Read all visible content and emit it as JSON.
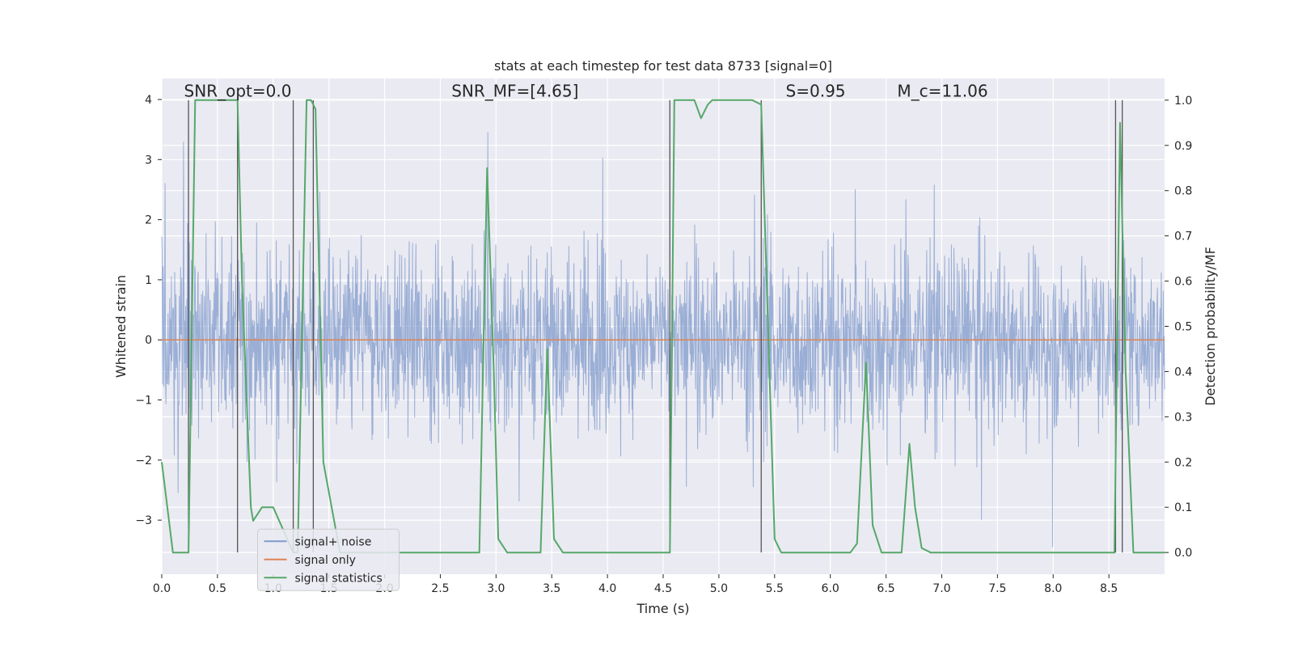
{
  "chart_data": {
    "type": "line",
    "title": "stats at each timestep for test data 8733 [signal=0]",
    "xlabel": "Time (s)",
    "ylabel_left": "Whitened strain",
    "ylabel_right": "Detection probability/MF",
    "xlim": [
      0,
      9.0
    ],
    "ylim_left": [
      -3.9,
      4.35
    ],
    "ylim_right": [
      -0.048,
      1.048
    ],
    "xticks": [
      0.0,
      0.5,
      1.0,
      1.5,
      2.0,
      2.5,
      3.0,
      3.5,
      4.0,
      4.5,
      5.0,
      5.5,
      6.0,
      6.5,
      7.0,
      7.5,
      8.0,
      8.5
    ],
    "xtick_labels": [
      "0.0",
      "0.5",
      "1.0",
      "1.5",
      "2.0",
      "2.5",
      "3.0",
      "3.5",
      "4.0",
      "4.5",
      "5.0",
      "5.5",
      "6.0",
      "6.5",
      "7.0",
      "7.5",
      "8.0",
      "8.5"
    ],
    "yticks_left": [
      -3,
      -2,
      -1,
      0,
      1,
      2,
      3,
      4
    ],
    "ytick_labels_left": [
      "−3",
      "−2",
      "−1",
      "0",
      "1",
      "2",
      "3",
      "4"
    ],
    "yticks_right": [
      0.0,
      0.1,
      0.2,
      0.3,
      0.4,
      0.5,
      0.6,
      0.7,
      0.8,
      0.9,
      1.0
    ],
    "ytick_labels_right": [
      "0.0",
      "0.1",
      "0.2",
      "0.3",
      "0.4",
      "0.5",
      "0.6",
      "0.7",
      "0.8",
      "0.9",
      "1.0"
    ],
    "annotations": [
      {
        "text": "SNR_opt=0.0",
        "x": 0.2,
        "y": 4.05
      },
      {
        "text": "SNR_MF=[4.65]",
        "x": 2.6,
        "y": 4.05
      },
      {
        "text": "S=0.95",
        "x": 5.6,
        "y": 4.05
      },
      {
        "text": "M_c=11.06",
        "x": 6.6,
        "y": 4.05
      }
    ],
    "legend": {
      "position": "lower-left",
      "entries": [
        "signal+ noise",
        "signal only",
        "signal statistics"
      ]
    },
    "series": [
      {
        "name": "signal+ noise",
        "color": "#7f9acb",
        "axis": "left",
        "description": "dense whitened noise trace, roughly between -3.5 and 4"
      },
      {
        "name": "signal only",
        "color": "#dd8452",
        "axis": "left",
        "x": [
          0.0,
          9.0
        ],
        "y": [
          0.0,
          0.0
        ]
      },
      {
        "name": "signal statistics",
        "color": "#55a868",
        "axis": "right",
        "x": [
          0.0,
          0.05,
          0.1,
          0.2,
          0.24,
          0.3,
          0.5,
          0.68,
          0.72,
          0.8,
          0.82,
          0.9,
          1.0,
          1.18,
          1.22,
          1.3,
          1.34,
          1.38,
          1.45,
          1.6,
          2.0,
          2.5,
          2.85,
          2.92,
          2.98,
          3.02,
          3.1,
          3.4,
          3.46,
          3.52,
          3.6,
          4.0,
          4.56,
          4.6,
          4.66,
          4.78,
          4.84,
          4.9,
          4.94,
          5.0,
          5.3,
          5.38,
          5.5,
          5.56,
          5.64,
          5.8,
          6.18,
          6.24,
          6.32,
          6.38,
          6.46,
          6.55,
          6.64,
          6.71,
          6.76,
          6.82,
          6.9,
          7.5,
          8.0,
          8.4,
          8.55,
          8.6,
          8.65,
          8.72,
          8.8,
          9.0
        ],
        "y": [
          0.2,
          0.1,
          0.0,
          0.0,
          0.0,
          1.0,
          1.0,
          1.0,
          0.6,
          0.1,
          0.07,
          0.1,
          0.1,
          0.0,
          0.0,
          1.0,
          1.0,
          0.98,
          0.2,
          0.0,
          0.0,
          0.0,
          0.0,
          0.85,
          0.4,
          0.03,
          0.0,
          0.0,
          0.45,
          0.03,
          0.0,
          0.0,
          0.0,
          1.0,
          1.0,
          1.0,
          0.96,
          0.99,
          1.0,
          1.0,
          1.0,
          0.99,
          0.03,
          0.0,
          0.0,
          0.0,
          0.0,
          0.02,
          0.42,
          0.06,
          0.0,
          0.0,
          0.0,
          0.24,
          0.1,
          0.01,
          0.0,
          0.0,
          0.0,
          0.0,
          0.0,
          0.95,
          0.4,
          0.0,
          0.0,
          0.0
        ]
      }
    ],
    "vertical_lines": {
      "color": "#555555",
      "x": [
        0.24,
        0.68,
        1.18,
        1.36,
        4.56,
        5.38,
        8.56,
        8.62
      ]
    }
  }
}
